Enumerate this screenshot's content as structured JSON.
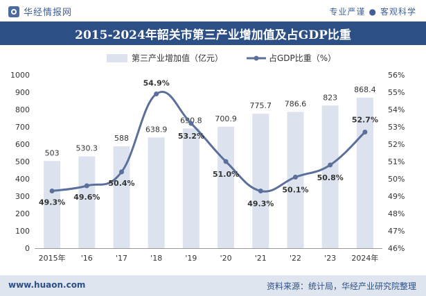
{
  "header": {
    "brand": "华经情报网",
    "slogan_left": "专业严谨",
    "slogan_sep": "●",
    "slogan_right": "客观科学"
  },
  "footer": {
    "url": "www.huaon.com",
    "source": "资料来源：统计局，华经产业研究院整理"
  },
  "colors": {
    "bar": "#dde3ee",
    "line": "#5a6f9a",
    "title_bg": "#2c4f86",
    "footer_bg": "#dfe5ef"
  },
  "chart_data": {
    "type": "bar+line",
    "title": "2015-2024年韶关市第三产业增加值及占GDP比重",
    "categories": [
      "2015年",
      "'16",
      "'17",
      "'18",
      "'19",
      "'20",
      "'21",
      "'22",
      "'23",
      "2024年"
    ],
    "series": [
      {
        "name": "第三产业增加值（亿元）",
        "type": "bar",
        "axis": "left",
        "values": [
          503,
          530.3,
          588,
          638.9,
          690.8,
          700.9,
          775.7,
          786.6,
          823,
          868.4
        ],
        "labels": [
          "503",
          "530.3",
          "588",
          "638.9",
          "690.8",
          "700.9",
          "775.7",
          "786.6",
          "823",
          "868.4"
        ]
      },
      {
        "name": "占GDP比重（%）",
        "type": "line",
        "axis": "right",
        "values": [
          49.3,
          49.6,
          50.4,
          54.9,
          53.2,
          51.0,
          49.3,
          50.1,
          50.8,
          52.7
        ],
        "labels": [
          "49.3%",
          "49.6%",
          "50.4%",
          "54.9%",
          "53.2%",
          "51.0%",
          "49.3%",
          "50.1%",
          "50.8%",
          "52.7%"
        ]
      }
    ],
    "left_axis": {
      "min": 0,
      "max": 1000,
      "step": 100,
      "ticks": [
        "0",
        "100",
        "200",
        "300",
        "400",
        "500",
        "600",
        "700",
        "800",
        "900",
        "1000"
      ]
    },
    "right_axis": {
      "min": 46,
      "max": 56,
      "step": 1,
      "ticks": [
        "46%",
        "47%",
        "48%",
        "49%",
        "50%",
        "51%",
        "52%",
        "53%",
        "54%",
        "55%",
        "56%"
      ]
    },
    "legend_position": "top-center",
    "grid": false
  }
}
